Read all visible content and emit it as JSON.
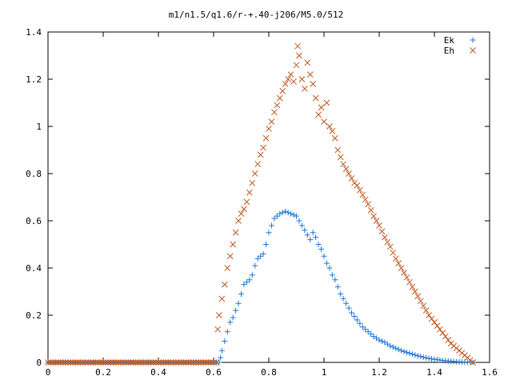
{
  "chart_data": {
    "type": "scatter",
    "title": "m1/n1.5/q1.6/r-+.40-j206/M5.0/512",
    "xlabel": "",
    "ylabel": "",
    "xlim": [
      0,
      1.6
    ],
    "ylim": [
      0,
      1.4
    ],
    "xticks": [
      "0",
      "0.2",
      "0.4",
      "0.6",
      "0.8",
      "1",
      "1.2",
      "1.4",
      "1.6"
    ],
    "yticks": [
      "0",
      "0.2",
      "0.4",
      "0.6",
      "0.8",
      "1",
      "1.2",
      "1.4"
    ],
    "grid": false,
    "legend_position": "top-right",
    "series": [
      {
        "name": "Ek",
        "marker": "plus",
        "color": "#1f77d4",
        "points": [
          [
            0.0,
            0
          ],
          [
            0.1,
            0
          ],
          [
            0.2,
            0
          ],
          [
            0.3,
            0
          ],
          [
            0.4,
            0
          ],
          [
            0.5,
            0
          ],
          [
            0.6,
            0
          ],
          [
            0.62,
            0
          ],
          [
            0.625,
            0.02
          ],
          [
            0.63,
            0.05
          ],
          [
            0.64,
            0.09
          ],
          [
            0.65,
            0.13
          ],
          [
            0.66,
            0.17
          ],
          [
            0.67,
            0.19
          ],
          [
            0.68,
            0.22
          ],
          [
            0.69,
            0.25
          ],
          [
            0.7,
            0.29
          ],
          [
            0.71,
            0.33
          ],
          [
            0.72,
            0.34
          ],
          [
            0.73,
            0.35
          ],
          [
            0.74,
            0.37
          ],
          [
            0.75,
            0.41
          ],
          [
            0.76,
            0.44
          ],
          [
            0.77,
            0.45
          ],
          [
            0.78,
            0.46
          ],
          [
            0.79,
            0.5
          ],
          [
            0.8,
            0.55
          ],
          [
            0.81,
            0.58
          ],
          [
            0.82,
            0.61
          ],
          [
            0.83,
            0.62
          ],
          [
            0.84,
            0.63
          ],
          [
            0.85,
            0.635
          ],
          [
            0.86,
            0.64
          ],
          [
            0.87,
            0.635
          ],
          [
            0.88,
            0.63
          ],
          [
            0.89,
            0.625
          ],
          [
            0.9,
            0.62
          ],
          [
            0.91,
            0.6
          ],
          [
            0.92,
            0.58
          ],
          [
            0.93,
            0.56
          ],
          [
            0.94,
            0.54
          ],
          [
            0.95,
            0.52
          ],
          [
            0.96,
            0.55
          ],
          [
            0.97,
            0.53
          ],
          [
            0.98,
            0.5
          ],
          [
            0.99,
            0.48
          ],
          [
            1.0,
            0.45
          ],
          [
            1.01,
            0.42
          ],
          [
            1.02,
            0.4
          ],
          [
            1.03,
            0.37
          ],
          [
            1.04,
            0.35
          ],
          [
            1.05,
            0.32
          ],
          [
            1.06,
            0.29
          ],
          [
            1.07,
            0.27
          ],
          [
            1.08,
            0.25
          ],
          [
            1.09,
            0.23
          ],
          [
            1.1,
            0.21
          ],
          [
            1.12,
            0.18
          ],
          [
            1.14,
            0.15
          ],
          [
            1.16,
            0.13
          ],
          [
            1.18,
            0.11
          ],
          [
            1.2,
            0.095
          ],
          [
            1.22,
            0.085
          ],
          [
            1.24,
            0.07
          ],
          [
            1.26,
            0.06
          ],
          [
            1.28,
            0.05
          ],
          [
            1.3,
            0.042
          ],
          [
            1.32,
            0.035
          ],
          [
            1.34,
            0.028
          ],
          [
            1.36,
            0.022
          ],
          [
            1.38,
            0.017
          ],
          [
            1.4,
            0.013
          ],
          [
            1.42,
            0.01
          ],
          [
            1.44,
            0.007
          ],
          [
            1.46,
            0.005
          ],
          [
            1.48,
            0.003
          ],
          [
            1.5,
            0.002
          ],
          [
            1.52,
            0.001
          ],
          [
            1.54,
            0.0
          ]
        ]
      },
      {
        "name": "Eh",
        "marker": "cross",
        "color": "#c0561d",
        "points": [
          [
            0.0,
            0
          ],
          [
            0.1,
            0
          ],
          [
            0.2,
            0
          ],
          [
            0.3,
            0
          ],
          [
            0.4,
            0
          ],
          [
            0.5,
            0
          ],
          [
            0.6,
            0
          ],
          [
            0.61,
            0.0
          ],
          [
            0.615,
            0.14
          ],
          [
            0.62,
            0.2
          ],
          [
            0.63,
            0.27
          ],
          [
            0.64,
            0.33
          ],
          [
            0.65,
            0.4
          ],
          [
            0.66,
            0.45
          ],
          [
            0.67,
            0.5
          ],
          [
            0.68,
            0.55
          ],
          [
            0.69,
            0.6
          ],
          [
            0.7,
            0.63
          ],
          [
            0.71,
            0.65
          ],
          [
            0.72,
            0.68
          ],
          [
            0.73,
            0.72
          ],
          [
            0.74,
            0.76
          ],
          [
            0.75,
            0.8
          ],
          [
            0.76,
            0.84
          ],
          [
            0.77,
            0.88
          ],
          [
            0.78,
            0.91
          ],
          [
            0.79,
            0.95
          ],
          [
            0.8,
            0.99
          ],
          [
            0.81,
            1.02
          ],
          [
            0.82,
            1.06
          ],
          [
            0.83,
            1.09
          ],
          [
            0.84,
            1.12
          ],
          [
            0.85,
            1.15
          ],
          [
            0.86,
            1.18
          ],
          [
            0.87,
            1.2
          ],
          [
            0.88,
            1.22
          ],
          [
            0.89,
            1.19
          ],
          [
            0.9,
            1.26
          ],
          [
            0.905,
            1.34
          ],
          [
            0.91,
            1.3
          ],
          [
            0.92,
            1.2
          ],
          [
            0.93,
            1.16
          ],
          [
            0.94,
            1.27
          ],
          [
            0.95,
            1.22
          ],
          [
            0.96,
            1.18
          ],
          [
            0.97,
            1.12
          ],
          [
            0.98,
            1.05
          ],
          [
            0.99,
            1.08
          ],
          [
            1.0,
            1.02
          ],
          [
            1.01,
            1.1
          ],
          [
            1.02,
            1.0
          ],
          [
            1.03,
            0.98
          ],
          [
            1.04,
            0.95
          ],
          [
            1.05,
            0.9
          ],
          [
            1.06,
            0.87
          ],
          [
            1.07,
            0.84
          ],
          [
            1.08,
            0.82
          ],
          [
            1.09,
            0.8
          ],
          [
            1.1,
            0.78
          ],
          [
            1.11,
            0.76
          ],
          [
            1.12,
            0.75
          ],
          [
            1.14,
            0.71
          ],
          [
            1.16,
            0.67
          ],
          [
            1.18,
            0.62
          ],
          [
            1.2,
            0.58
          ],
          [
            1.22,
            0.53
          ],
          [
            1.24,
            0.49
          ],
          [
            1.26,
            0.44
          ],
          [
            1.28,
            0.4
          ],
          [
            1.3,
            0.36
          ],
          [
            1.32,
            0.32
          ],
          [
            1.34,
            0.28
          ],
          [
            1.36,
            0.24
          ],
          [
            1.38,
            0.2
          ],
          [
            1.4,
            0.17
          ],
          [
            1.42,
            0.14
          ],
          [
            1.44,
            0.11
          ],
          [
            1.46,
            0.08
          ],
          [
            1.48,
            0.06
          ],
          [
            1.5,
            0.04
          ],
          [
            1.52,
            0.02
          ],
          [
            1.54,
            0.0
          ]
        ]
      }
    ]
  }
}
